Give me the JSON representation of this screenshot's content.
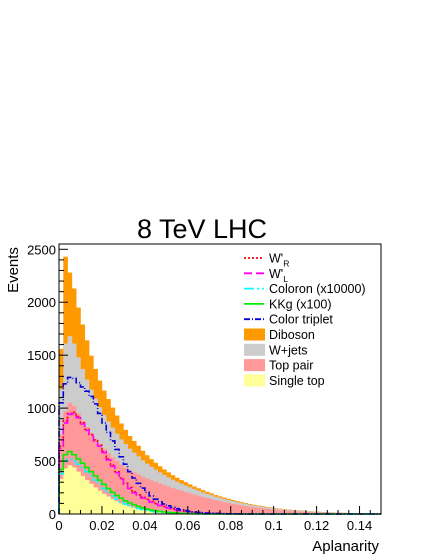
{
  "chart_data": {
    "type": "area",
    "title": "8 TeV LHC",
    "xlabel": "Aplanarity",
    "ylabel": "Events",
    "xlim": [
      0,
      0.15
    ],
    "ylim": [
      0,
      2550
    ],
    "x_ticks": [
      0,
      0.02,
      0.04,
      0.06,
      0.08,
      0.1,
      0.12,
      0.14
    ],
    "x_tick_labels": [
      "0",
      "0.02",
      "0.04",
      "0.06",
      "0.08",
      "0.1",
      "0.12",
      "0.14"
    ],
    "y_ticks": [
      0,
      500,
      1000,
      1500,
      2000,
      2500
    ],
    "y_tick_labels": [
      "0",
      "500",
      "1000",
      "1500",
      "2000",
      "2500"
    ],
    "grid": false,
    "legend_position": "top-right",
    "bin_edges_start": 0,
    "bin_width": 0.002,
    "stacked_series": [
      {
        "name": "Single top",
        "color": "#ffff99",
        "values": [
          330,
          430,
          460,
          440,
          400,
          360,
          320,
          285,
          250,
          220,
          190,
          165,
          140,
          120,
          100,
          85,
          72,
          60,
          50,
          42,
          35,
          28,
          23,
          18,
          14,
          11,
          8,
          6,
          5,
          4,
          3,
          2,
          2,
          1,
          1,
          1,
          0,
          0,
          0,
          0,
          0,
          0,
          0,
          0,
          0,
          0,
          0,
          0,
          0,
          0,
          0,
          0,
          0,
          0,
          0,
          0,
          0,
          0,
          0,
          0,
          0,
          0,
          0,
          0,
          0,
          0,
          0,
          0,
          0,
          0,
          0,
          0,
          0,
          0,
          0
        ]
      },
      {
        "name": "Top pair",
        "color": "#ff9999",
        "values": [
          420,
          540,
          590,
          580,
          550,
          520,
          500,
          480,
          460,
          440,
          425,
          410,
          395,
          380,
          365,
          355,
          345,
          335,
          325,
          310,
          300,
          290,
          280,
          270,
          260,
          248,
          237,
          226,
          215,
          204,
          193,
          182,
          171,
          160,
          150,
          140,
          130,
          121,
          112,
          104,
          96,
          89,
          82,
          75,
          69,
          63,
          58,
          53,
          48,
          44,
          40,
          36,
          33,
          30,
          27,
          24,
          22,
          20,
          18,
          16,
          14,
          12,
          11,
          10,
          9,
          8,
          7,
          6,
          5,
          5,
          4,
          4,
          3,
          3,
          2
        ]
      },
      {
        "name": "W+jets",
        "color": "#cccccc",
        "values": [
          430,
          640,
          630,
          590,
          530,
          490,
          450,
          410,
          380,
          350,
          320,
          300,
          280,
          260,
          240,
          220,
          200,
          185,
          170,
          155,
          140,
          128,
          116,
          105,
          95,
          87,
          79,
          72,
          66,
          61,
          56,
          51,
          47,
          43,
          40,
          37,
          34,
          31,
          29,
          27,
          25,
          23,
          21,
          20,
          18,
          17,
          16,
          15,
          14,
          13,
          12,
          11,
          10,
          10,
          9,
          8,
          8,
          7,
          7,
          6,
          6,
          5,
          5,
          5,
          4,
          4,
          4,
          3,
          3,
          3,
          3,
          2,
          2,
          2,
          2
        ]
      },
      {
        "name": "Diboson",
        "color": "#ff9900",
        "values": [
          380,
          820,
          600,
          520,
          470,
          420,
          370,
          320,
          280,
          250,
          230,
          210,
          190,
          170,
          150,
          135,
          120,
          110,
          100,
          90,
          80,
          72,
          65,
          58,
          52,
          47,
          42,
          38,
          34,
          31,
          28,
          25,
          23,
          21,
          19,
          17,
          15,
          14,
          13,
          12,
          11,
          10,
          9,
          8,
          7,
          7,
          6,
          6,
          5,
          5,
          4,
          4,
          4,
          3,
          3,
          3,
          3,
          2,
          2,
          2,
          2,
          2,
          2,
          1,
          1,
          1,
          1,
          1,
          1,
          1,
          1,
          1,
          1,
          1,
          1
        ]
      }
    ],
    "signal_series": [
      {
        "name": "W'R",
        "label_main": "W'",
        "label_sub": "R",
        "color": "#ff0000",
        "dash": "2,2",
        "values": [
          640,
          880,
          950,
          960,
          920,
          860,
          800,
          750,
          700,
          650,
          590,
          520,
          460,
          400,
          340,
          290,
          250,
          210,
          180,
          160,
          140,
          120,
          100,
          85,
          70,
          58,
          48,
          40,
          32,
          26,
          21,
          17,
          13,
          10,
          8,
          6,
          5,
          4,
          3,
          2,
          2,
          1,
          1,
          1,
          1,
          0,
          0,
          0,
          0,
          0,
          0,
          0,
          0,
          0,
          0,
          0,
          0,
          0,
          0,
          0,
          0,
          0,
          0,
          0,
          0,
          0,
          0,
          0,
          0,
          0,
          0,
          0,
          0,
          0,
          0
        ]
      },
      {
        "name": "W'L",
        "label_main": "W'",
        "label_sub": "L",
        "color": "#ff00ff",
        "dash": "8,4",
        "values": [
          620,
          860,
          940,
          950,
          910,
          850,
          790,
          740,
          690,
          640,
          580,
          510,
          450,
          390,
          330,
          280,
          240,
          200,
          170,
          150,
          130,
          110,
          95,
          80,
          66,
          55,
          45,
          37,
          30,
          24,
          19,
          15,
          12,
          9,
          7,
          5,
          4,
          3,
          2,
          2,
          1,
          1,
          1,
          1,
          0,
          0,
          0,
          0,
          0,
          0,
          0,
          0,
          0,
          0,
          0,
          0,
          0,
          0,
          0,
          0,
          0,
          0,
          0,
          0,
          0,
          0,
          0,
          0,
          0,
          0,
          0,
          0,
          0,
          0,
          0
        ]
      },
      {
        "name": "Coloron (x10000)",
        "label_main": "Coloron (x10000)",
        "label_sub": "",
        "color": "#00ffff",
        "dash": "10,3,2,3",
        "values": [
          380,
          500,
          520,
          500,
          470,
          440,
          400,
          360,
          320,
          280,
          240,
          200,
          170,
          140,
          115,
          95,
          80,
          65,
          52,
          42,
          34,
          27,
          21,
          17,
          13,
          10,
          8,
          6,
          5,
          4,
          3,
          2,
          2,
          1,
          1,
          1,
          0,
          0,
          0,
          0,
          0,
          0,
          0,
          0,
          0,
          0,
          0,
          0,
          0,
          0,
          0,
          0,
          0,
          0,
          0,
          0,
          0,
          0,
          0,
          0,
          0,
          0,
          0,
          0,
          0,
          0,
          0,
          0,
          0,
          0,
          0,
          0,
          0,
          0,
          0
        ]
      },
      {
        "name": "KKg (x100)",
        "label_main": "KKg (x100)",
        "label_sub": "",
        "color": "#00ee00",
        "dash": "",
        "values": [
          420,
          560,
          590,
          560,
          520,
          480,
          440,
          400,
          360,
          320,
          280,
          240,
          205,
          175,
          150,
          125,
          105,
          88,
          72,
          58,
          47,
          38,
          30,
          24,
          19,
          15,
          11,
          9,
          7,
          5,
          4,
          3,
          2,
          2,
          1,
          1,
          1,
          0,
          0,
          0,
          0,
          0,
          0,
          0,
          0,
          0,
          0,
          0,
          0,
          0,
          0,
          0,
          0,
          0,
          0,
          0,
          0,
          0,
          0,
          0,
          0,
          0,
          0,
          0,
          0,
          0,
          0,
          0,
          0,
          0,
          0,
          0,
          0,
          0,
          0
        ]
      },
      {
        "name": "Color triplet",
        "label_main": "Color triplet",
        "label_sub": "",
        "color": "#0000dd",
        "dash": "6,2,1,2",
        "values": [
          1050,
          1230,
          1290,
          1280,
          1240,
          1200,
          1160,
          1110,
          1040,
          950,
          860,
          770,
          690,
          610,
          540,
          470,
          400,
          340,
          290,
          245,
          205,
          170,
          140,
          115,
          95,
          77,
          62,
          50,
          40,
          32,
          25,
          20,
          16,
          12,
          9,
          7,
          5,
          4,
          3,
          2,
          2,
          1,
          1,
          1,
          0,
          0,
          0,
          0,
          0,
          0,
          0,
          0,
          0,
          0,
          0,
          0,
          0,
          0,
          0,
          0,
          0,
          0,
          0,
          0,
          0,
          0,
          0,
          0,
          0,
          0,
          0,
          0,
          0,
          0,
          0
        ]
      }
    ],
    "legend_order": [
      "W'R",
      "W'L",
      "Coloron (x10000)",
      "KKg (x100)",
      "Color triplet",
      "Diboson",
      "W+jets",
      "Top pair",
      "Single top"
    ]
  }
}
